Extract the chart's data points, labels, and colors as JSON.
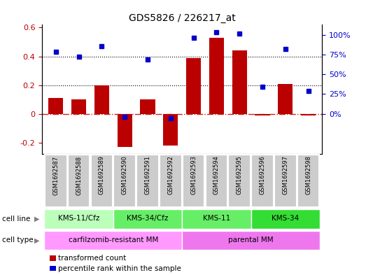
{
  "title": "GDS5826 / 226217_at",
  "samples": [
    "GSM1692587",
    "GSM1692588",
    "GSM1692589",
    "GSM1692590",
    "GSM1692591",
    "GSM1692592",
    "GSM1692593",
    "GSM1692594",
    "GSM1692595",
    "GSM1692596",
    "GSM1692597",
    "GSM1692598"
  ],
  "transformed_count": [
    0.11,
    0.1,
    0.2,
    -0.23,
    0.1,
    -0.22,
    0.39,
    0.53,
    0.44,
    -0.01,
    0.21,
    -0.01
  ],
  "percentile_rank": [
    0.43,
    0.4,
    0.47,
    -0.02,
    0.38,
    -0.03,
    0.53,
    0.57,
    0.56,
    0.19,
    0.45,
    0.16
  ],
  "bar_color": "#bb0000",
  "dot_color": "#0000cc",
  "zero_line_color": "#cc2222",
  "ylim_left": [
    -0.28,
    0.62
  ],
  "yticks_left": [
    -0.2,
    0.0,
    0.2,
    0.4,
    0.6
  ],
  "yticks_right_labels": [
    "0%",
    "25%",
    "50%",
    "75%",
    "100%"
  ],
  "cell_line_groups": [
    {
      "label": "KMS-11/Cfz",
      "start": 0,
      "end": 3,
      "color": "#bbffbb"
    },
    {
      "label": "KMS-34/Cfz",
      "start": 3,
      "end": 6,
      "color": "#66ee66"
    },
    {
      "label": "KMS-11",
      "start": 6,
      "end": 9,
      "color": "#66ee66"
    },
    {
      "label": "KMS-34",
      "start": 9,
      "end": 12,
      "color": "#33dd33"
    }
  ],
  "cell_type_groups": [
    {
      "label": "carfilzomib-resistant MM",
      "start": 0,
      "end": 6,
      "color": "#ff99ff"
    },
    {
      "label": "parental MM",
      "start": 6,
      "end": 12,
      "color": "#ee77ee"
    }
  ],
  "legend_items": [
    {
      "label": "transformed count",
      "color": "#bb0000"
    },
    {
      "label": "percentile rank within the sample",
      "color": "#0000cc"
    }
  ],
  "sample_box_color": "#cccccc",
  "sample_box_edge_color": "#ffffff"
}
